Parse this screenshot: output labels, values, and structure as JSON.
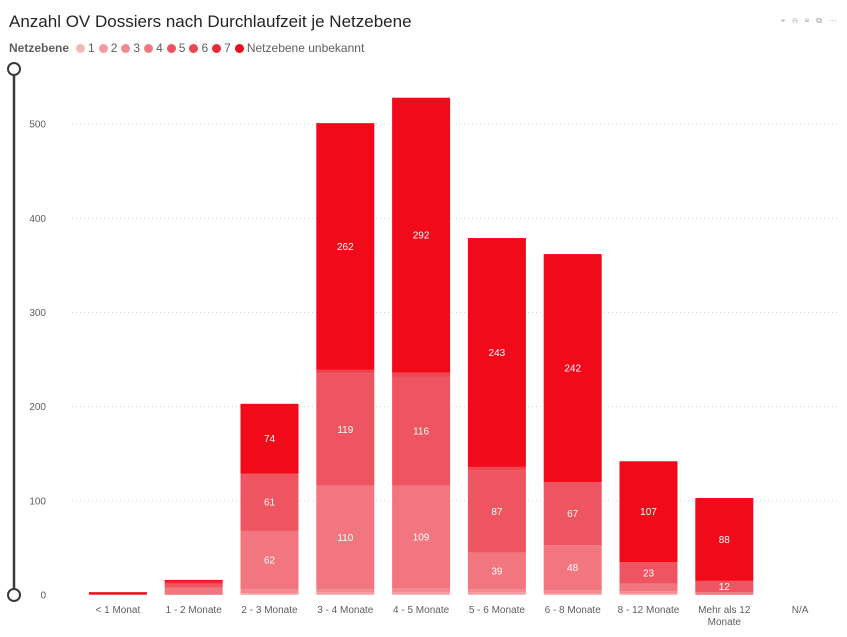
{
  "title": "Anzahl OV Dossiers nach Durchlaufzeit je Netzebene",
  "toolbar": [
    {
      "name": "pin-icon",
      "glyph": "⌖"
    },
    {
      "name": "bell-icon",
      "glyph": "⍾"
    },
    {
      "name": "filter-icon",
      "glyph": "≡"
    },
    {
      "name": "focus-mode-icon",
      "glyph": "⧉"
    },
    {
      "name": "more-options-icon",
      "glyph": "⋯"
    }
  ],
  "chart_data": {
    "type": "bar",
    "stacked": true,
    "title": "Anzahl OV Dossiers nach Durchlaufzeit je Netzebene",
    "legend_title": "Netzebene",
    "legend_position": "top-left",
    "grid": true,
    "ylim": [
      0,
      550
    ],
    "yticks": [
      0,
      100,
      200,
      300,
      400,
      500
    ],
    "categories": [
      "< 1 Monat",
      "1 - 2 Monate",
      "2 - 3 Monate",
      "3 - 4 Monate",
      "4 - 5 Monate",
      "5 - 6 Monate",
      "6 - 8 Monate",
      "8 - 12 Monate",
      "Mehr als 12 Monate",
      "N/A"
    ],
    "series": [
      {
        "name": "1",
        "color": "#f6b7bb",
        "values": [
          0,
          0,
          1,
          1,
          1,
          1,
          1,
          1,
          0,
          0
        ]
      },
      {
        "name": "2",
        "color": "#f59aa0",
        "values": [
          0,
          0,
          1,
          2,
          2,
          2,
          1,
          1,
          0,
          0
        ]
      },
      {
        "name": "3",
        "color": "#f48a91",
        "values": [
          0,
          1,
          4,
          3,
          4,
          3,
          3,
          2,
          1,
          0
        ]
      },
      {
        "name": "4",
        "color": "#f27680",
        "values": [
          0,
          7,
          62,
          110,
          109,
          39,
          48,
          8,
          2,
          0
        ]
      },
      {
        "name": "5",
        "color": "#ef5560",
        "values": [
          1,
          4,
          61,
          119,
          116,
          87,
          67,
          23,
          12,
          0
        ]
      },
      {
        "name": "6",
        "color": "#ed4651",
        "values": [
          0,
          0,
          0,
          4,
          4,
          4,
          0,
          0,
          0,
          0
        ]
      },
      {
        "name": "7",
        "color": "#eb2a38",
        "values": [
          0,
          2,
          0,
          0,
          0,
          0,
          0,
          0,
          0,
          0
        ]
      },
      {
        "name": "Netzebene unbekannt",
        "color": "#f00a1a",
        "values": [
          2,
          2,
          74,
          262,
          292,
          243,
          242,
          107,
          88,
          0
        ]
      }
    ],
    "data_labels": [
      {
        "category": 2,
        "series": 3,
        "text": "62"
      },
      {
        "category": 2,
        "series": 4,
        "text": "61"
      },
      {
        "category": 2,
        "series": 7,
        "text": "74"
      },
      {
        "category": 3,
        "series": 3,
        "text": "110"
      },
      {
        "category": 3,
        "series": 4,
        "text": "119"
      },
      {
        "category": 3,
        "series": 7,
        "text": "262"
      },
      {
        "category": 4,
        "series": 3,
        "text": "109"
      },
      {
        "category": 4,
        "series": 4,
        "text": "116"
      },
      {
        "category": 4,
        "series": 7,
        "text": "292"
      },
      {
        "category": 5,
        "series": 3,
        "text": "39"
      },
      {
        "category": 5,
        "series": 4,
        "text": "87"
      },
      {
        "category": 5,
        "series": 7,
        "text": "243"
      },
      {
        "category": 6,
        "series": 3,
        "text": "48"
      },
      {
        "category": 6,
        "series": 4,
        "text": "67"
      },
      {
        "category": 6,
        "series": 7,
        "text": "242"
      },
      {
        "category": 7,
        "series": 4,
        "text": "23"
      },
      {
        "category": 7,
        "series": 7,
        "text": "107"
      },
      {
        "category": 8,
        "series": 4,
        "text": "12"
      },
      {
        "category": 8,
        "series": 7,
        "text": "88"
      }
    ]
  }
}
